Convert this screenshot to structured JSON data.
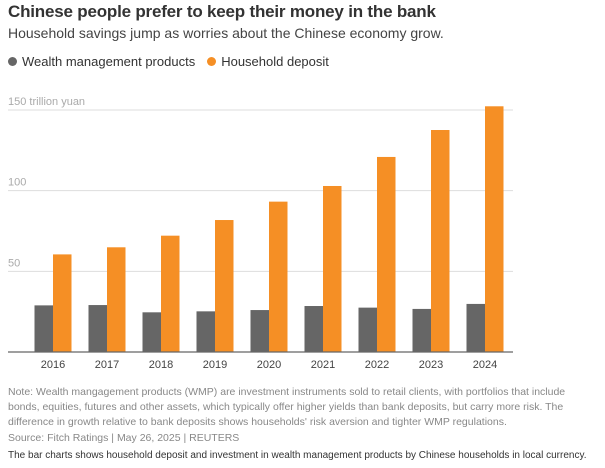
{
  "header": {
    "title": "Chinese people prefer to keep their money in the bank",
    "subtitle": "Household savings jump as worries about the Chinese economy grow."
  },
  "chart_data": {
    "type": "bar",
    "categories": [
      "2016",
      "2017",
      "2018",
      "2019",
      "2020",
      "2021",
      "2022",
      "2023",
      "2024"
    ],
    "series": [
      {
        "name": "Wealth management products",
        "color": "#666666",
        "values": [
          28.9,
          29.1,
          24.6,
          25.2,
          26.0,
          28.5,
          27.5,
          26.7,
          29.8
        ]
      },
      {
        "name": "Household deposit",
        "color": "#f58f25",
        "values": [
          60.5,
          64.9,
          72.1,
          81.8,
          93.2,
          102.9,
          120.9,
          137.6,
          152.3
        ]
      }
    ],
    "ylabel": "",
    "yunit": "trillion yuan",
    "yticks": [
      {
        "value": 50,
        "label": "50"
      },
      {
        "value": 100,
        "label": "100"
      },
      {
        "value": 150,
        "label": "150 trillion yuan"
      }
    ],
    "ylim": [
      0,
      150
    ],
    "grid": true,
    "legend": "top-left"
  },
  "footer": {
    "note": "Note: Wealth mangagement products (WMP) are investment instruments sold to retail clients, with portfolios that include bonds, equities, futures and other assets, which typically offer higher yields than bank deposits, but carry more risk. The difference in growth relative to bank deposits shows households' risk aversion and tighter WMP regulations.",
    "source": "Source: Fitch Ratings | May 26, 2025 | REUTERS",
    "caption": "The bar charts shows household deposit and investment in wealth management products by Chinese households in local currency."
  }
}
